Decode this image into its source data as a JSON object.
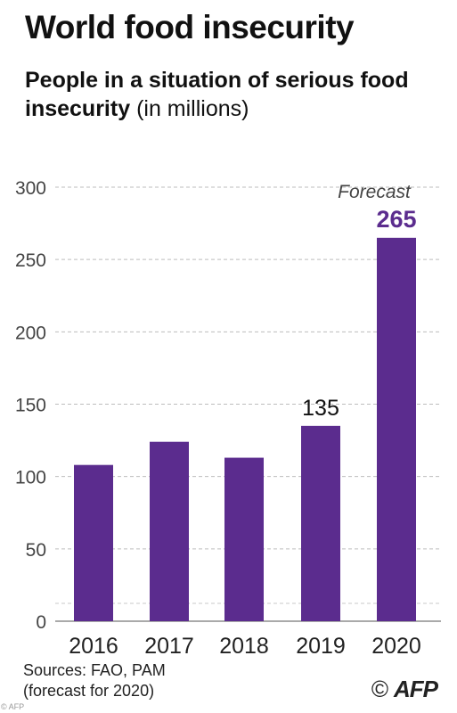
{
  "header": {
    "title": "World food insecurity",
    "subtitle_main": "People in a situation of serious food insecurity",
    "subtitle_unit": "(in millions)"
  },
  "chart_data": {
    "type": "bar",
    "categories": [
      "2016",
      "2017",
      "2018",
      "2019",
      "2020"
    ],
    "values": [
      108,
      124,
      113,
      135,
      265
    ],
    "ylim": [
      0,
      300
    ],
    "yticks": [
      "300",
      "250",
      "200",
      "150",
      "100",
      "50",
      "0"
    ],
    "data_labels": [
      {
        "category": "2019",
        "text": "135"
      },
      {
        "category": "2020",
        "text": "265"
      }
    ],
    "annotation": "Forecast",
    "grid": true,
    "bar_color": "#5b2c8e",
    "highlight_label_color": "#5b2c8e"
  },
  "footer": {
    "sources_line1": "Sources: FAO, PAM",
    "sources_line2": "(forecast for 2020)",
    "copyright": "©",
    "agency": "AFP",
    "watermark": "© AFP"
  }
}
